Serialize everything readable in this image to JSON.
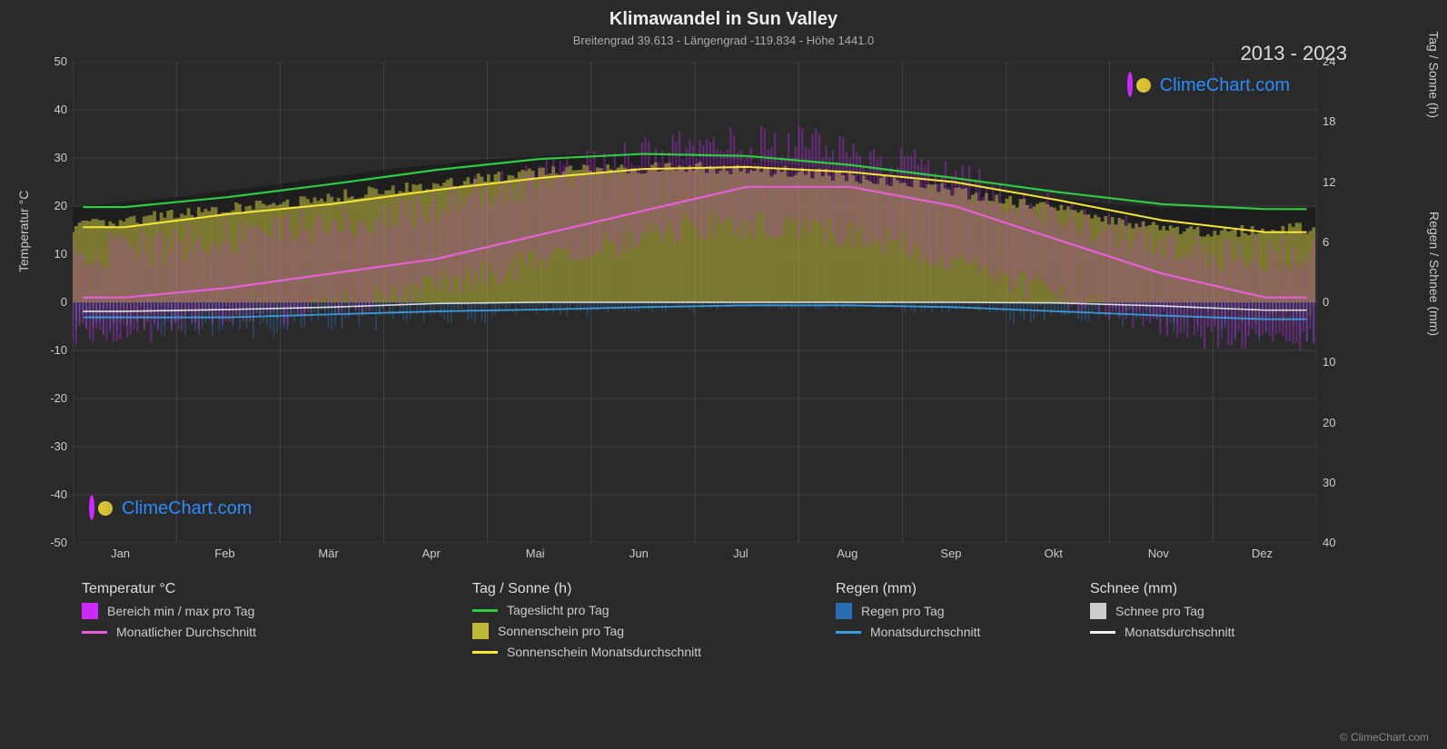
{
  "title": "Klimawandel in Sun Valley",
  "subtitle": "Breitengrad 39.613 - Längengrad -119.834 - Höhe 1441.0",
  "year_range": "2013 - 2023",
  "watermark_text": "ClimeChart.com",
  "copyright": "© ClimeChart.com",
  "chart": {
    "type": "multi-axis-climate",
    "background_color": "#2a2a2a",
    "grid_color": "#555555",
    "text_color": "#cccccc",
    "y_left": {
      "label": "Temperatur °C",
      "min": -50,
      "max": 50,
      "step": 10,
      "ticks": [
        50,
        40,
        30,
        20,
        10,
        0,
        -10,
        -20,
        -30,
        -40,
        -50
      ]
    },
    "y_right_top": {
      "label": "Tag / Sonne (h)",
      "min": 0,
      "max": 24,
      "step": 6,
      "ticks": [
        24,
        18,
        12,
        6,
        0
      ]
    },
    "y_right_bottom": {
      "label": "Regen / Schnee (mm)",
      "min": 0,
      "max": 40,
      "step": 10,
      "ticks": [
        0,
        10,
        20,
        30,
        40
      ]
    },
    "months": [
      "Jan",
      "Feb",
      "Mär",
      "Apr",
      "Mai",
      "Jun",
      "Jul",
      "Aug",
      "Sep",
      "Okt",
      "Nov",
      "Dez"
    ],
    "series": {
      "daylight": {
        "color": "#2ecc40",
        "values": [
          9.5,
          10.5,
          11.8,
          13.2,
          14.3,
          14.8,
          14.6,
          13.7,
          12.4,
          11.0,
          9.8,
          9.3
        ]
      },
      "sunshine_avg": {
        "color": "#f7e638",
        "values": [
          7.5,
          8.8,
          9.8,
          11.2,
          12.4,
          13.3,
          13.5,
          13.0,
          12.0,
          10.2,
          8.2,
          7.0
        ]
      },
      "temp_avg": {
        "color": "#e85fd8",
        "values": [
          1,
          3,
          6,
          9,
          14,
          19,
          24,
          24,
          20,
          13,
          6,
          1
        ]
      },
      "rain_avg": {
        "color": "#3a9ad9",
        "values": [
          2.5,
          2.5,
          2.0,
          1.5,
          1.2,
          0.8,
          0.5,
          0.5,
          0.8,
          1.5,
          2.2,
          2.8
        ]
      },
      "snow_avg": {
        "color": "#eeeeee",
        "values": [
          1.5,
          1.2,
          0.8,
          0.2,
          0,
          0,
          0,
          0,
          0,
          0.1,
          0.6,
          1.3
        ]
      },
      "temp_range_fill_color": "#cc2afd",
      "sunshine_fill_color": "#bdb838",
      "rain_bar_color": "#2a6bb3",
      "snow_bar_color": "#888888",
      "dark_band_color": "#1a1a1a"
    }
  },
  "legend": {
    "groups": [
      {
        "title": "Temperatur °C",
        "items": [
          {
            "swatch_type": "block",
            "color": "#cc2afd",
            "label": "Bereich min / max pro Tag"
          },
          {
            "swatch_type": "line",
            "color": "#e85fd8",
            "label": "Monatlicher Durchschnitt"
          }
        ]
      },
      {
        "title": "Tag / Sonne (h)",
        "items": [
          {
            "swatch_type": "line",
            "color": "#2ecc40",
            "label": "Tageslicht pro Tag"
          },
          {
            "swatch_type": "block",
            "color": "#bdb838",
            "label": "Sonnenschein pro Tag"
          },
          {
            "swatch_type": "line",
            "color": "#f7e638",
            "label": "Sonnenschein Monatsdurchschnitt"
          }
        ]
      },
      {
        "title": "Regen (mm)",
        "items": [
          {
            "swatch_type": "block",
            "color": "#2a6bb3",
            "label": "Regen pro Tag"
          },
          {
            "swatch_type": "line",
            "color": "#3a9ad9",
            "label": "Monatsdurchschnitt"
          }
        ]
      },
      {
        "title": "Schnee (mm)",
        "items": [
          {
            "swatch_type": "block",
            "color": "#cccccc",
            "label": "Schnee pro Tag"
          },
          {
            "swatch_type": "line",
            "color": "#eeeeee",
            "label": "Monatsdurchschnitt"
          }
        ]
      }
    ]
  }
}
